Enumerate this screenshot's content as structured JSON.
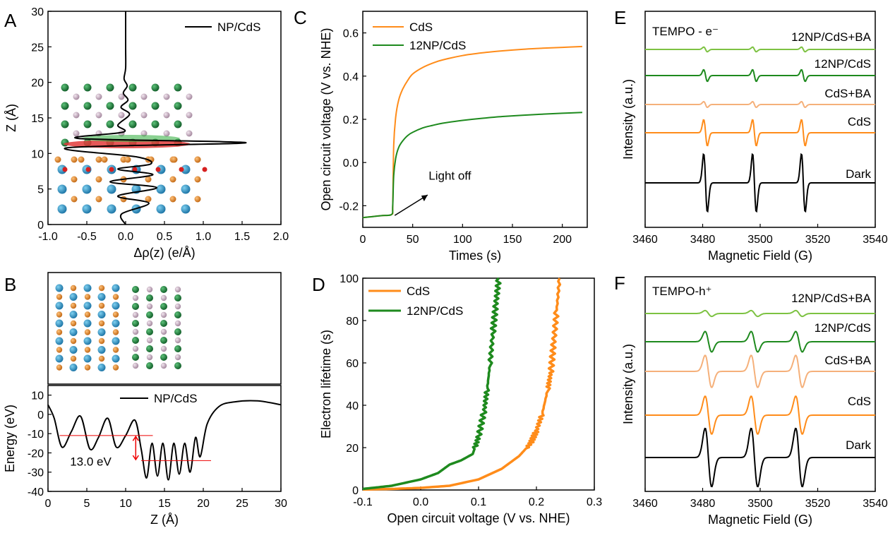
{
  "chart_data": [
    {
      "panel": "A",
      "type": "line",
      "xlabel": "Δρ(z) (e/Å)",
      "ylabel": "Z (Å)",
      "xlim": [
        -1.0,
        2.0
      ],
      "ylim": [
        0,
        30
      ],
      "xticks": [
        "-1.0",
        "-0.5",
        "0.0",
        "0.5",
        "1.0",
        "1.5",
        "2.0"
      ],
      "yticks": [
        "0",
        "5",
        "10",
        "15",
        "20",
        "25",
        "30"
      ],
      "legend": "top-right",
      "series": [
        {
          "name": "NP/CdS",
          "x": [
            0.0,
            0.0,
            0.0,
            -0.02,
            0.02,
            -0.03,
            0.03,
            -0.06,
            0.05,
            -0.1,
            -0.03,
            -0.6,
            1.55,
            -0.75,
            0.15,
            0.32,
            -0.1,
            0.35,
            -0.2,
            0.4,
            -0.1,
            0.3,
            -0.05,
            0.0
          ],
          "y": [
            30,
            25,
            22,
            20.5,
            19.5,
            18.5,
            17.5,
            16.5,
            15.5,
            14,
            13,
            12.1,
            11.5,
            10.8,
            9.5,
            8.5,
            7.8,
            7.0,
            6.0,
            5.2,
            4.0,
            3.0,
            1.5,
            0
          ]
        }
      ]
    },
    {
      "panel": "B",
      "type": "line",
      "xlabel": "Z (Å)",
      "ylabel": "Energy (eV)",
      "xlim": [
        0,
        30
      ],
      "ylim": [
        -40,
        15
      ],
      "xticks": [
        "0",
        "5",
        "10",
        "15",
        "20",
        "25",
        "30"
      ],
      "yticks": [
        "-40",
        "-30",
        "-20",
        "-10",
        "0",
        "10"
      ],
      "legend": "top-right",
      "annotation": "13.0 eV",
      "series": [
        {
          "name": "NP/CdS",
          "x": [
            0,
            0.8,
            1.8,
            3.0,
            4.2,
            5.4,
            6.5,
            7.7,
            8.8,
            10.0,
            11.2,
            12.0,
            12.7,
            13.4,
            14.1,
            14.8,
            15.5,
            16.2,
            16.9,
            17.6,
            18.3,
            19.0,
            19.6,
            20.5,
            22,
            24,
            27,
            30
          ],
          "y": [
            5,
            -2,
            -17,
            -9,
            -1,
            -18,
            -12,
            -2,
            -17,
            -11,
            -3,
            -18,
            -33,
            -15,
            -32,
            -15,
            -34,
            -15,
            -31,
            -15,
            -30,
            -12,
            -22,
            -5,
            4,
            6.5,
            7,
            5
          ]
        }
      ]
    },
    {
      "panel": "C",
      "type": "line",
      "xlabel": "Times (s)",
      "ylabel": "Open circuit voltage (V vs. NHE)",
      "xlim": [
        0,
        225
      ],
      "ylim": [
        -0.3,
        0.7
      ],
      "xticks": [
        "0",
        "50",
        "100",
        "150",
        "200"
      ],
      "yticks": [
        "-0.2",
        "0.0",
        "0.2",
        "0.4",
        "0.6"
      ],
      "legend": "top-left",
      "annotation": "Light off",
      "series": [
        {
          "name": "CdS",
          "color": "#ff8c1a",
          "x": [
            0,
            10,
            20,
            29,
            30,
            31,
            33,
            36,
            40,
            45,
            50,
            60,
            70,
            80,
            100,
            120,
            140,
            160,
            180,
            200,
            220
          ],
          "y": [
            -0.255,
            -0.25,
            -0.245,
            -0.24,
            -0.2,
            0.08,
            0.21,
            0.29,
            0.34,
            0.38,
            0.41,
            0.44,
            0.46,
            0.475,
            0.495,
            0.508,
            0.517,
            0.524,
            0.529,
            0.533,
            0.537
          ]
        },
        {
          "name": "12NP/CdS",
          "color": "#1e8a1e",
          "x": [
            0,
            10,
            20,
            29,
            30,
            31,
            33,
            36,
            40,
            45,
            50,
            60,
            70,
            80,
            100,
            120,
            140,
            160,
            180,
            200,
            220
          ],
          "y": [
            -0.255,
            -0.25,
            -0.245,
            -0.24,
            -0.2,
            -0.06,
            0.02,
            0.07,
            0.1,
            0.125,
            0.14,
            0.16,
            0.172,
            0.182,
            0.195,
            0.205,
            0.213,
            0.219,
            0.224,
            0.228,
            0.232
          ]
        }
      ]
    },
    {
      "panel": "D",
      "type": "line",
      "xlabel": "Open circuit voltage (V vs. NHE)",
      "ylabel": "Electron lifetime (s)",
      "xlim": [
        -0.1,
        0.3
      ],
      "ylim": [
        0,
        100
      ],
      "xticks": [
        "-0.1",
        "0.0",
        "0.1",
        "0.2",
        "0.3"
      ],
      "yticks": [
        "0",
        "20",
        "40",
        "60",
        "80",
        "100"
      ],
      "legend": "top-left",
      "series": [
        {
          "name": "CdS",
          "color": "#ff8c1a",
          "x": [
            -0.1,
            -0.05,
            0.0,
            0.05,
            0.1,
            0.14,
            0.17,
            0.19,
            0.2,
            0.21,
            0.22,
            0.225,
            0.23,
            0.235,
            0.24
          ],
          "y": [
            0.2,
            0.5,
            1,
            2,
            5,
            10,
            16,
            22,
            28,
            36,
            48,
            56,
            70,
            85,
            100
          ]
        },
        {
          "name": "12NP/CdS",
          "color": "#1e8a1e",
          "x": [
            -0.1,
            -0.05,
            0.0,
            0.03,
            0.05,
            0.07,
            0.09,
            0.1,
            0.11,
            0.115,
            0.12,
            0.125,
            0.13,
            0.135
          ],
          "y": [
            0.5,
            2,
            5,
            8,
            12,
            14,
            17,
            25,
            38,
            48,
            60,
            75,
            88,
            100
          ]
        }
      ]
    },
    {
      "panel": "E",
      "type": "line",
      "title": "TEMPO - e⁻",
      "xlabel": "Magnetic Field (G)",
      "ylabel": "Intensity (a.u.)",
      "xlim": [
        3460,
        3540
      ],
      "xticks": [
        "3460",
        "3480",
        "3500",
        "3520",
        "3540"
      ],
      "peaks_G": [
        3481,
        3498,
        3515
      ],
      "series": [
        {
          "name": "12NP/CdS+BA",
          "color": "#7dc242",
          "amplitude": 0.08
        },
        {
          "name": "12NP/CdS",
          "color": "#1e8a1e",
          "amplitude": 0.2
        },
        {
          "name": "CdS+BA",
          "color": "#f5b07a",
          "amplitude": 0.1
        },
        {
          "name": "CdS",
          "color": "#ff8c1a",
          "amplitude": 0.45
        },
        {
          "name": "Dark",
          "color": "#000000",
          "amplitude": 1.0
        }
      ]
    },
    {
      "panel": "F",
      "type": "line",
      "title": "TEMPO-h⁺",
      "xlabel": "Magnetic Field (G)",
      "ylabel": "Intensity (a.u.)",
      "xlim": [
        3460,
        3540
      ],
      "xticks": [
        "3460",
        "3480",
        "3500",
        "3520",
        "3540"
      ],
      "peaks_G": [
        3482,
        3498,
        3513.5
      ],
      "series": [
        {
          "name": "12NP/CdS+BA",
          "color": "#7dc242",
          "amplitude": 0.1
        },
        {
          "name": "12NP/CdS",
          "color": "#1e8a1e",
          "amplitude": 0.35
        },
        {
          "name": "CdS+BA",
          "color": "#f5b07a",
          "amplitude": 0.55
        },
        {
          "name": "CdS",
          "color": "#ff8c1a",
          "amplitude": 0.65
        },
        {
          "name": "Dark",
          "color": "#000000",
          "amplitude": 1.0
        }
      ]
    }
  ],
  "labels": {
    "panel_a": "A",
    "panel_b": "B",
    "panel_c": "C",
    "panel_d": "D",
    "panel_e": "E",
    "panel_f": "F"
  }
}
